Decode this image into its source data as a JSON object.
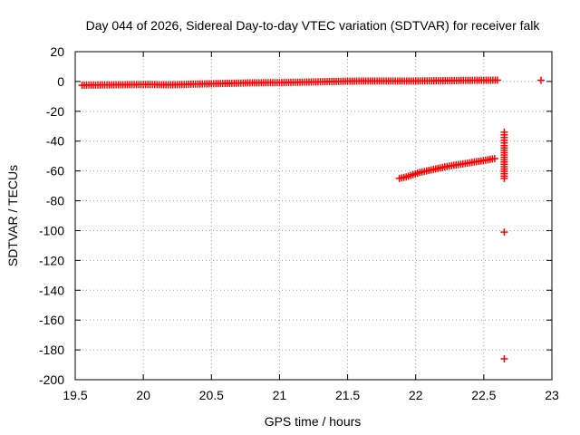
{
  "chart_data": {
    "type": "scatter",
    "title": "Day 044 of 2026, Sidereal Day-to-day VTEC variation (SDTVAR) for receiver falk",
    "xlabel": "GPS time / hours",
    "ylabel": "SDTVAR / TECUs",
    "xlim": [
      19.5,
      23
    ],
    "ylim": [
      -200,
      20
    ],
    "xticks": [
      19.5,
      20,
      20.5,
      21,
      21.5,
      22,
      22.5,
      23
    ],
    "xtick_labels": [
      "19.5",
      "20",
      "20.5",
      "21",
      "21.5",
      "22",
      "22.5",
      "23"
    ],
    "yticks": [
      20,
      0,
      -20,
      -40,
      -60,
      -80,
      -100,
      -120,
      -140,
      -160,
      -180,
      -200
    ],
    "ytick_labels": [
      "20",
      "0",
      "-20",
      "-40",
      "-60",
      "-80",
      "-100",
      "-120",
      "-140",
      "-160",
      "-180",
      "-200"
    ],
    "grid": true,
    "marker": "plus",
    "marker_color": "#ff0000",
    "series": [
      {
        "values": [
          [
            19.55,
            -2.5
          ],
          [
            19.6,
            -2.4
          ],
          [
            19.65,
            -2.4
          ],
          [
            19.7,
            -2.3
          ],
          [
            19.75,
            -2.3
          ],
          [
            19.8,
            -2.2
          ],
          [
            19.85,
            -2.2
          ],
          [
            19.9,
            -2.1
          ],
          [
            19.95,
            -2.1
          ],
          [
            20.0,
            -2.0
          ],
          [
            20.05,
            -2.0
          ],
          [
            20.1,
            -2.1
          ],
          [
            20.15,
            -2.2
          ],
          [
            20.2,
            -2.2
          ],
          [
            20.25,
            -2.1
          ],
          [
            20.3,
            -2.0
          ],
          [
            20.35,
            -1.8
          ],
          [
            20.4,
            -1.7
          ],
          [
            20.45,
            -1.6
          ],
          [
            20.5,
            -1.5
          ],
          [
            20.55,
            -1.4
          ],
          [
            20.6,
            -1.3
          ],
          [
            20.65,
            -1.2
          ],
          [
            20.7,
            -1.1
          ],
          [
            20.75,
            -1.0
          ],
          [
            20.8,
            -0.9
          ],
          [
            20.85,
            -0.9
          ],
          [
            20.9,
            -0.8
          ],
          [
            20.95,
            -0.8
          ],
          [
            21.0,
            -0.8
          ],
          [
            21.05,
            -0.7
          ],
          [
            21.1,
            -0.6
          ],
          [
            21.15,
            -0.5
          ],
          [
            21.2,
            -0.4
          ],
          [
            21.25,
            -0.3
          ],
          [
            21.3,
            -0.2
          ],
          [
            21.35,
            -0.1
          ],
          [
            21.4,
            0.0
          ],
          [
            21.45,
            0.1
          ],
          [
            21.5,
            0.2
          ],
          [
            21.55,
            0.2
          ],
          [
            21.6,
            0.3
          ],
          [
            21.65,
            0.3
          ],
          [
            21.7,
            0.3
          ],
          [
            21.75,
            0.3
          ],
          [
            21.8,
            0.3
          ],
          [
            21.85,
            0.3
          ],
          [
            21.9,
            0.3
          ],
          [
            21.95,
            0.3
          ],
          [
            22.0,
            0.3
          ],
          [
            22.05,
            0.4
          ],
          [
            22.1,
            0.4
          ],
          [
            22.15,
            0.5
          ],
          [
            22.2,
            0.5
          ],
          [
            22.25,
            0.6
          ],
          [
            22.3,
            0.6
          ],
          [
            22.35,
            0.7
          ],
          [
            22.4,
            0.7
          ],
          [
            22.45,
            0.8
          ],
          [
            22.5,
            0.8
          ],
          [
            22.55,
            0.8
          ],
          [
            22.6,
            0.9
          ]
        ]
      },
      {
        "values": [
          [
            21.88,
            -65
          ],
          [
            21.93,
            -64
          ],
          [
            21.98,
            -62.5
          ],
          [
            22.03,
            -61
          ],
          [
            22.08,
            -60
          ],
          [
            22.13,
            -59
          ],
          [
            22.18,
            -58
          ],
          [
            22.23,
            -57
          ],
          [
            22.28,
            -56.2
          ],
          [
            22.33,
            -55.5
          ],
          [
            22.38,
            -54.8
          ],
          [
            22.43,
            -54
          ],
          [
            22.48,
            -53.3
          ],
          [
            22.53,
            -52.5
          ],
          [
            22.58,
            -51.7
          ]
        ]
      },
      {
        "values": [
          [
            22.65,
            -34
          ],
          [
            22.65,
            -43
          ],
          [
            22.65,
            -65
          ],
          [
            22.65,
            -101
          ],
          [
            22.65,
            -186
          ],
          [
            22.92,
            0.8
          ]
        ]
      }
    ]
  }
}
